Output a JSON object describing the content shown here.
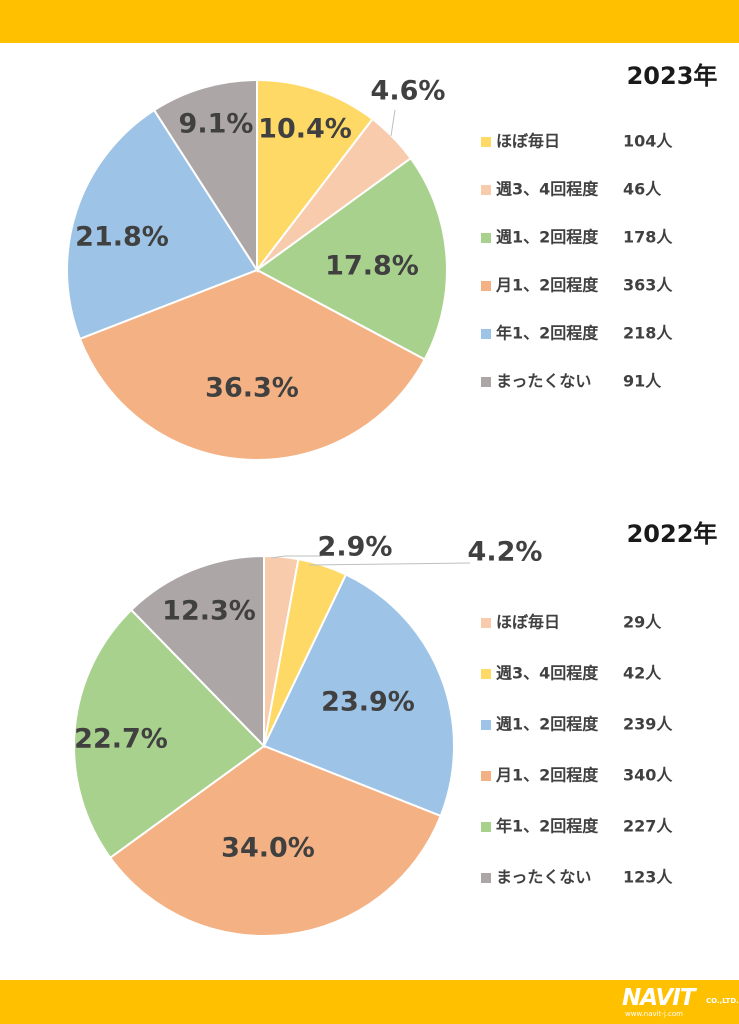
{
  "chart_data": [
    {
      "type": "pie",
      "title": "2023年",
      "unit": "人",
      "slices": [
        {
          "label": "ほぼ毎日",
          "count": 104,
          "count_label": "104人",
          "percent": 10.4,
          "percent_label": "10.4%",
          "color": "#FFD966"
        },
        {
          "label": "週3、4回程度",
          "count": 46,
          "count_label": "46人",
          "percent": 4.6,
          "percent_label": "4.6%",
          "color": "#F8CBAD"
        },
        {
          "label": "週1、2回程度",
          "count": 178,
          "count_label": "178人",
          "percent": 17.8,
          "percent_label": "17.8%",
          "color": "#A9D18E"
        },
        {
          "label": "月1、2回程度",
          "count": 363,
          "count_label": "363人",
          "percent": 36.3,
          "percent_label": "36.3%",
          "color": "#F4B183"
        },
        {
          "label": "年1、2回程度",
          "count": 218,
          "count_label": "218人",
          "percent": 21.8,
          "percent_label": "21.8%",
          "color": "#9DC3E6"
        },
        {
          "label": "まったくない",
          "count": 91,
          "count_label": "91人",
          "percent": 9.1,
          "percent_label": "9.1%",
          "color": "#ADA6A6"
        }
      ]
    },
    {
      "type": "pie",
      "title": "2022年",
      "unit": "人",
      "slices": [
        {
          "label": "ほぼ毎日",
          "count": 29,
          "count_label": "29人",
          "percent": 2.9,
          "percent_label": "2.9%",
          "color": "#F8CBAD"
        },
        {
          "label": "週3、4回程度",
          "count": 42,
          "count_label": "42人",
          "percent": 4.2,
          "percent_label": "4.2%",
          "color": "#FFD966"
        },
        {
          "label": "週1、2回程度",
          "count": 239,
          "count_label": "239人",
          "percent": 23.9,
          "percent_label": "23.9%",
          "color": "#9DC3E6"
        },
        {
          "label": "月1、2回程度",
          "count": 340,
          "count_label": "340人",
          "percent": 34.0,
          "percent_label": "34.0%",
          "color": "#F4B183"
        },
        {
          "label": "年1、2回程度",
          "count": 227,
          "count_label": "227人",
          "percent": 22.7,
          "percent_label": "22.7%",
          "color": "#A9D18E"
        },
        {
          "label": "まったくない",
          "count": 123,
          "count_label": "123人",
          "percent": 12.3,
          "percent_label": "12.3%",
          "color": "#ADA6A6"
        }
      ]
    }
  ],
  "brand": {
    "accent_color": "#FFC000",
    "logo_text": "NAVIT",
    "logo_suffix": "CO.,LTD.",
    "logo_url": "www.navit-j.com"
  }
}
